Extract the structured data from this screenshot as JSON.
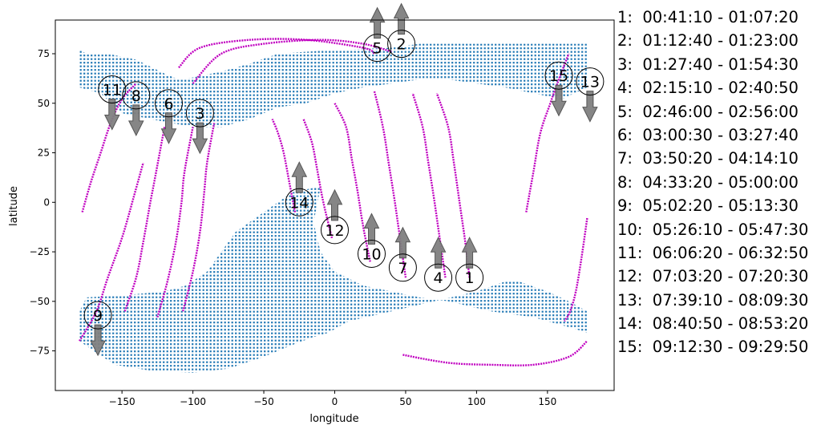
{
  "chart_data": {
    "type": "scatter",
    "title": "",
    "xlabel": "longitude",
    "ylabel": "latitude",
    "xlim": [
      -197,
      197
    ],
    "ylim": [
      -95,
      92
    ],
    "xticks": [
      -150,
      -100,
      -50,
      0,
      50,
      100,
      150
    ],
    "yticks": [
      -75,
      -50,
      -25,
      0,
      25,
      50,
      75
    ],
    "colors": {
      "land": "#1f77b4",
      "track": "#c000c0",
      "arrow": "#7f7f7f"
    },
    "land_regions": [
      {
        "name": "north-landmass",
        "polygon": [
          [
            -180,
            77
          ],
          [
            -175,
            75
          ],
          [
            -160,
            75
          ],
          [
            -140,
            72
          ],
          [
            -120,
            65
          ],
          [
            -110,
            62
          ],
          [
            -100,
            63
          ],
          [
            -80,
            66
          ],
          [
            -60,
            70
          ],
          [
            -40,
            75
          ],
          [
            0,
            77
          ],
          [
            40,
            78
          ],
          [
            60,
            80
          ],
          [
            100,
            80
          ],
          [
            178,
            80
          ],
          [
            178,
            58
          ],
          [
            160,
            52
          ],
          [
            140,
            55
          ],
          [
            120,
            58
          ],
          [
            100,
            60
          ],
          [
            80,
            62
          ],
          [
            60,
            62
          ],
          [
            40,
            60
          ],
          [
            20,
            58
          ],
          [
            0,
            55
          ],
          [
            -20,
            50
          ],
          [
            -40,
            48
          ],
          [
            -60,
            42
          ],
          [
            -80,
            38
          ],
          [
            -100,
            38
          ],
          [
            -130,
            42
          ],
          [
            -150,
            45
          ],
          [
            -165,
            55
          ],
          [
            -180,
            58
          ]
        ]
      },
      {
        "name": "south-landmass",
        "polygon": [
          [
            -10,
            8
          ],
          [
            -30,
            5
          ],
          [
            -50,
            -5
          ],
          [
            -70,
            -15
          ],
          [
            -90,
            -35
          ],
          [
            -105,
            -42
          ],
          [
            -120,
            -45
          ],
          [
            -150,
            -47
          ],
          [
            -175,
            -48
          ],
          [
            -180,
            -55
          ],
          [
            -180,
            -70
          ],
          [
            -170,
            -75
          ],
          [
            -155,
            -82
          ],
          [
            -130,
            -85
          ],
          [
            -100,
            -86
          ],
          [
            -75,
            -84
          ],
          [
            -50,
            -78
          ],
          [
            -30,
            -72
          ],
          [
            -15,
            -68
          ],
          [
            -5,
            -66
          ],
          [
            10,
            -60
          ],
          [
            40,
            -55
          ],
          [
            70,
            -50
          ],
          [
            100,
            -45
          ],
          [
            120,
            -40
          ],
          [
            130,
            -40
          ],
          [
            150,
            -45
          ],
          [
            165,
            -50
          ],
          [
            178,
            -55
          ],
          [
            178,
            -66
          ],
          [
            170,
            -64
          ],
          [
            140,
            -58
          ],
          [
            110,
            -55
          ],
          [
            80,
            -50
          ],
          [
            60,
            -48
          ],
          [
            40,
            -45
          ],
          [
            20,
            -42
          ],
          [
            0,
            -35
          ],
          [
            -10,
            -25
          ],
          [
            -15,
            -10
          ],
          [
            -12,
            0
          ]
        ]
      }
    ],
    "tracks": [
      {
        "id": "1",
        "points": [
          [
            95,
            -38
          ],
          [
            92,
            -20
          ],
          [
            88,
            0
          ],
          [
            84,
            20
          ],
          [
            80,
            38
          ],
          [
            72,
            55
          ]
        ]
      },
      {
        "id": "2",
        "points": [
          [
            -100,
            60
          ],
          [
            -80,
            75
          ],
          [
            -50,
            80
          ],
          [
            -10,
            82
          ],
          [
            20,
            80
          ],
          [
            40,
            76
          ]
        ]
      },
      {
        "id": "3",
        "points": [
          [
            -107,
            -55
          ],
          [
            -100,
            -35
          ],
          [
            -95,
            -15
          ],
          [
            -92,
            5
          ],
          [
            -90,
            20
          ],
          [
            -85,
            40
          ]
        ]
      },
      {
        "id": "4",
        "points": [
          [
            78,
            -38
          ],
          [
            74,
            -18
          ],
          [
            70,
            2
          ],
          [
            66,
            20
          ],
          [
            62,
            38
          ],
          [
            55,
            55
          ]
        ]
      },
      {
        "id": "5",
        "points": [
          [
            -110,
            68
          ],
          [
            -95,
            78
          ],
          [
            -60,
            82
          ],
          [
            -20,
            82
          ],
          [
            20,
            78
          ],
          [
            28,
            75
          ]
        ]
      },
      {
        "id": "6",
        "points": [
          [
            -125,
            -58
          ],
          [
            -118,
            -40
          ],
          [
            -112,
            -20
          ],
          [
            -108,
            0
          ],
          [
            -106,
            15
          ],
          [
            -100,
            38
          ]
        ]
      },
      {
        "id": "7",
        "points": [
          [
            50,
            -38
          ],
          [
            46,
            -18
          ],
          [
            42,
            2
          ],
          [
            38,
            20
          ],
          [
            34,
            38
          ],
          [
            28,
            56
          ]
        ]
      },
      {
        "id": "8",
        "points": [
          [
            -148,
            -55
          ],
          [
            -140,
            -38
          ],
          [
            -135,
            -20
          ],
          [
            -130,
            0
          ],
          [
            -126,
            15
          ],
          [
            -120,
            38
          ]
        ]
      },
      {
        "id": "9",
        "points": [
          [
            -180,
            -70
          ],
          [
            -168,
            -55
          ],
          [
            -160,
            -38
          ],
          [
            -150,
            -18
          ],
          [
            -142,
            2
          ],
          [
            -135,
            20
          ]
        ]
      },
      {
        "id": "10",
        "points": [
          [
            25,
            -30
          ],
          [
            20,
            -12
          ],
          [
            16,
            6
          ],
          [
            12,
            22
          ],
          [
            8,
            38
          ],
          [
            0,
            50
          ]
        ]
      },
      {
        "id": "11",
        "points": [
          [
            -178,
            -5
          ],
          [
            -172,
            10
          ],
          [
            -165,
            25
          ],
          [
            -158,
            40
          ],
          [
            -150,
            52
          ],
          [
            -140,
            60
          ]
        ]
      },
      {
        "id": "12",
        "points": [
          [
            -2,
            -18
          ],
          [
            -8,
            0
          ],
          [
            -12,
            15
          ],
          [
            -16,
            30
          ],
          [
            -22,
            42
          ]
        ]
      },
      {
        "id": "13",
        "points": [
          [
            178,
            -8
          ],
          [
            174,
            -28
          ],
          [
            170,
            -45
          ],
          [
            166,
            -55
          ],
          [
            162,
            -60
          ]
        ]
      },
      {
        "id": "14",
        "points": [
          [
            -28,
            -5
          ],
          [
            -32,
            10
          ],
          [
            -36,
            25
          ],
          [
            -40,
            35
          ],
          [
            -44,
            42
          ]
        ]
      },
      {
        "id": "15",
        "points": [
          [
            135,
            -5
          ],
          [
            140,
            15
          ],
          [
            145,
            35
          ],
          [
            152,
            50
          ],
          [
            158,
            62
          ],
          [
            165,
            75
          ]
        ]
      },
      {
        "id": "south-arc",
        "points": [
          [
            48,
            -77
          ],
          [
            80,
            -81
          ],
          [
            110,
            -82
          ],
          [
            140,
            -82
          ],
          [
            165,
            -78
          ],
          [
            178,
            -70
          ]
        ]
      }
    ],
    "markers": [
      {
        "label": "1",
        "lon": 95,
        "lat": -38,
        "arrow": "up"
      },
      {
        "label": "2",
        "lon": 47,
        "lat": 80,
        "arrow": "up"
      },
      {
        "label": "3",
        "lon": -95,
        "lat": 45,
        "arrow": "down"
      },
      {
        "label": "4",
        "lon": 73,
        "lat": -38,
        "arrow": "up"
      },
      {
        "label": "5",
        "lon": 30,
        "lat": 78,
        "arrow": "up"
      },
      {
        "label": "6",
        "lon": -117,
        "lat": 50,
        "arrow": "down"
      },
      {
        "label": "7",
        "lon": 48,
        "lat": -33,
        "arrow": "up"
      },
      {
        "label": "8",
        "lon": -140,
        "lat": 54,
        "arrow": "down"
      },
      {
        "label": "9",
        "lon": -167,
        "lat": -57,
        "arrow": "down"
      },
      {
        "label": "10",
        "lon": 26,
        "lat": -26,
        "arrow": "up"
      },
      {
        "label": "11",
        "lon": -157,
        "lat": 57,
        "arrow": "down"
      },
      {
        "label": "12",
        "lon": 0,
        "lat": -14,
        "arrow": "up"
      },
      {
        "label": "13",
        "lon": 180,
        "lat": 61,
        "arrow": "down"
      },
      {
        "label": "14",
        "lon": -25,
        "lat": 0,
        "arrow": "up"
      },
      {
        "label": "15",
        "lon": 158,
        "lat": 64,
        "arrow": "down"
      }
    ],
    "legend": [
      "1:  00:41:10 - 01:07:20",
      "2:  01:12:40 - 01:23:00",
      "3:  01:27:40 - 01:54:30",
      "4:  02:15:10 - 02:40:50",
      "5:  02:46:00 - 02:56:00",
      "6:  03:00:30 - 03:27:40",
      "7:  03:50:20 - 04:14:10",
      "8:  04:33:20 - 05:00:00",
      "9:  05:02:20 - 05:13:30",
      "10:  05:26:10 - 05:47:30",
      "11:  06:06:20 - 06:32:50",
      "12:  07:03:20 - 07:20:30",
      "13:  07:39:10 - 08:09:30",
      "14:  08:40:50 - 08:53:20",
      "15:  09:12:30 - 09:29:50"
    ]
  }
}
